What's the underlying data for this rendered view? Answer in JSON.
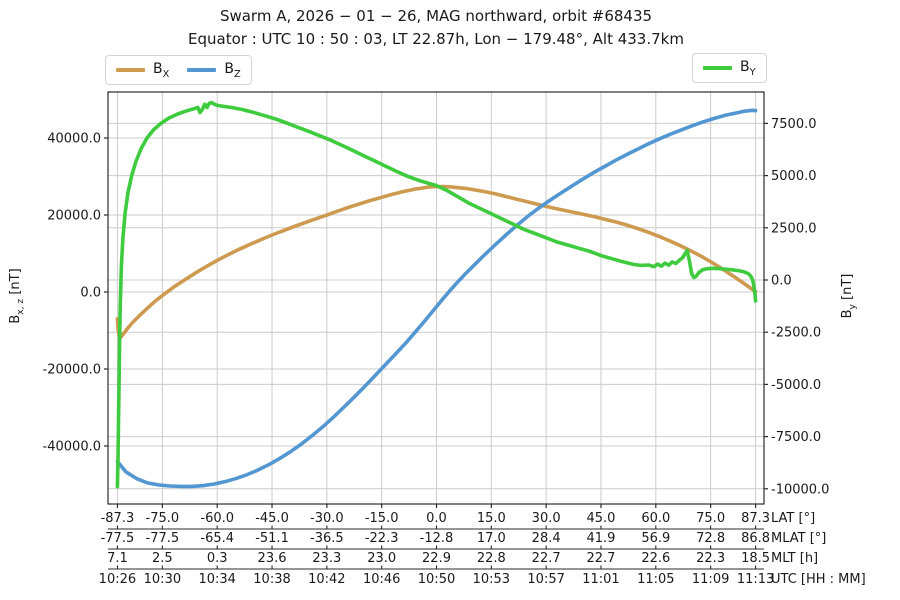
{
  "header": {
    "title_line1": "Swarm A,  2026 − 01 − 26,  MAG northward,  orbit #68435",
    "title_line2": "Equator :  UTC 10 : 50 : 03,  LT 22.87h,  Lon − 179.48°,  Alt 433.7km"
  },
  "legend_left": [
    {
      "base": "B",
      "sub": "X",
      "color": "#cd9a50"
    },
    {
      "base": "B",
      "sub": "Z",
      "color": "#5397d2"
    }
  ],
  "legend_right": [
    {
      "base": "B",
      "sub": "Y",
      "color": "#3ecb3e"
    }
  ],
  "chart_data": {
    "type": "line",
    "title": "Swarm A, 2026-01-26, MAG northward, orbit #68435",
    "subtitle": "Equator: UTC 10:50:03, LT 22.87h, Lon -179.48°, Alt 433.7km",
    "grid": true,
    "y_left": {
      "label_pre": "B",
      "label_sub": "x, z",
      "label_post": " [nT]",
      "ticks": [
        40000,
        20000,
        0,
        -20000,
        -40000
      ],
      "tick_labels": [
        "40000.0",
        "20000.0",
        "0.0",
        "-20000.0",
        "-40000.0"
      ],
      "range": [
        -55000,
        51900
      ]
    },
    "y_right": {
      "label_pre": "B",
      "label_sub": "y",
      "label_post": " [nT]",
      "ticks": [
        7500,
        5000,
        2500,
        0,
        -2500,
        -5000,
        -7500,
        -10000
      ],
      "tick_labels": [
        "7500.0",
        "5000.0",
        "2500.0",
        "0.0",
        "-2500.0",
        "-5000.0",
        "-7500.0",
        "-10000.0"
      ],
      "range": [
        -10730,
        9000
      ]
    },
    "x_axis": {
      "lat_ticks": [
        -87.3,
        -75,
        -60,
        -45,
        -30,
        -15,
        0,
        15,
        30,
        45,
        60,
        75,
        87.3
      ],
      "range": [
        -89.8,
        89.6
      ],
      "rows": [
        {
          "label": "LAT [°]",
          "values": [
            "-87.3",
            "-75.0",
            "-60.0",
            "-45.0",
            "-30.0",
            "-15.0",
            "0.0",
            "15.0",
            "30.0",
            "45.0",
            "60.0",
            "75.0",
            "87.3"
          ]
        },
        {
          "label": "MLAT [°]",
          "values": [
            "-77.5",
            "-77.5",
            "-65.4",
            "-51.1",
            "-36.5",
            "-22.3",
            "-12.8",
            "17.0",
            "28.4",
            "41.9",
            "56.9",
            "72.8",
            "86.8"
          ]
        },
        {
          "label": "MLT [h]",
          "values": [
            "7.1",
            "2.5",
            "0.3",
            "23.6",
            "23.3",
            "23.0",
            "22.9",
            "22.8",
            "22.7",
            "22.7",
            "22.6",
            "22.3",
            "18.5"
          ]
        },
        {
          "label": "UTC [HH : MM]",
          "values": [
            "10:26",
            "10:30",
            "10:34",
            "10:38",
            "10:42",
            "10:46",
            "10:50",
            "10:53",
            "10:57",
            "11:01",
            "11:05",
            "11:09",
            "11:13"
          ]
        }
      ]
    },
    "series": [
      {
        "name": "B_X",
        "axis": "left",
        "color": "#cd9a50",
        "points": [
          [
            -87.3,
            -7000
          ],
          [
            -87.1,
            -9600
          ],
          [
            -86.8,
            -11500
          ],
          [
            -86.5,
            -11900
          ],
          [
            -86.1,
            -11400
          ],
          [
            -85.5,
            -10700
          ],
          [
            -84.5,
            -9400
          ],
          [
            -83,
            -7800
          ],
          [
            -81,
            -5900
          ],
          [
            -79,
            -4100
          ],
          [
            -77,
            -2400
          ],
          [
            -75,
            -900
          ],
          [
            -72,
            1200
          ],
          [
            -69,
            3100
          ],
          [
            -66,
            4900
          ],
          [
            -63,
            6600
          ],
          [
            -60,
            8200
          ],
          [
            -57,
            9700
          ],
          [
            -54,
            11100
          ],
          [
            -51,
            12400
          ],
          [
            -48,
            13600
          ],
          [
            -45,
            14800
          ],
          [
            -42,
            15900
          ],
          [
            -39,
            17000
          ],
          [
            -36,
            18000
          ],
          [
            -33,
            19000
          ],
          [
            -30,
            20000
          ],
          [
            -27,
            21000
          ],
          [
            -24,
            22000
          ],
          [
            -21,
            22900
          ],
          [
            -18,
            23800
          ],
          [
            -15,
            24600
          ],
          [
            -12,
            25400
          ],
          [
            -9,
            26100
          ],
          [
            -6,
            26700
          ],
          [
            -4,
            27000
          ],
          [
            -2,
            27300
          ],
          [
            0,
            27400
          ],
          [
            2,
            27400
          ],
          [
            4,
            27300
          ],
          [
            6,
            27100
          ],
          [
            8,
            26900
          ],
          [
            10,
            26600
          ],
          [
            13,
            26100
          ],
          [
            16,
            25500
          ],
          [
            19,
            24800
          ],
          [
            22,
            24100
          ],
          [
            25,
            23400
          ],
          [
            28,
            22700
          ],
          [
            31,
            22000
          ],
          [
            34,
            21400
          ],
          [
            37,
            20800
          ],
          [
            40,
            20200
          ],
          [
            43,
            19600
          ],
          [
            46,
            18900
          ],
          [
            49,
            18200
          ],
          [
            52,
            17400
          ],
          [
            55,
            16500
          ],
          [
            58,
            15500
          ],
          [
            61,
            14400
          ],
          [
            64,
            13200
          ],
          [
            67,
            11900
          ],
          [
            70,
            10500
          ],
          [
            73,
            9000
          ],
          [
            76,
            7300
          ],
          [
            79,
            5500
          ],
          [
            82,
            3600
          ],
          [
            84,
            2300
          ],
          [
            85.5,
            1300
          ],
          [
            86.5,
            600
          ],
          [
            87.3,
            150
          ]
        ]
      },
      {
        "name": "B_Z",
        "axis": "left",
        "color": "#5397d2",
        "points": [
          [
            -87.3,
            -44000
          ],
          [
            -85,
            -46700
          ],
          [
            -82,
            -48500
          ],
          [
            -79,
            -49600
          ],
          [
            -76,
            -50100
          ],
          [
            -73,
            -50400
          ],
          [
            -70,
            -50500
          ],
          [
            -67,
            -50500
          ],
          [
            -64,
            -50300
          ],
          [
            -61,
            -49900
          ],
          [
            -58,
            -49300
          ],
          [
            -55,
            -48500
          ],
          [
            -52,
            -47500
          ],
          [
            -49,
            -46300
          ],
          [
            -46,
            -44900
          ],
          [
            -43,
            -43300
          ],
          [
            -40,
            -41500
          ],
          [
            -37,
            -39500
          ],
          [
            -34,
            -37300
          ],
          [
            -31,
            -34900
          ],
          [
            -28,
            -32300
          ],
          [
            -25,
            -29600
          ],
          [
            -22,
            -26800
          ],
          [
            -19,
            -23900
          ],
          [
            -16,
            -20900
          ],
          [
            -13,
            -17900
          ],
          [
            -10,
            -14900
          ],
          [
            -8,
            -12800
          ],
          [
            -6,
            -10600
          ],
          [
            -4,
            -8400
          ],
          [
            -2,
            -6100
          ],
          [
            0,
            -3800
          ],
          [
            2,
            -1500
          ],
          [
            4,
            700
          ],
          [
            6,
            2800
          ],
          [
            8,
            4800
          ],
          [
            10,
            6700
          ],
          [
            13,
            9500
          ],
          [
            16,
            12200
          ],
          [
            19,
            14800
          ],
          [
            22,
            17300
          ],
          [
            25,
            19700
          ],
          [
            28,
            21800
          ],
          [
            31,
            23800
          ],
          [
            34,
            25700
          ],
          [
            37,
            27500
          ],
          [
            40,
            29300
          ],
          [
            43,
            31000
          ],
          [
            46,
            32600
          ],
          [
            49,
            34200
          ],
          [
            52,
            35700
          ],
          [
            55,
            37100
          ],
          [
            58,
            38500
          ],
          [
            61,
            39800
          ],
          [
            64,
            41000
          ],
          [
            67,
            42100
          ],
          [
            70,
            43200
          ],
          [
            73,
            44200
          ],
          [
            76,
            45100
          ],
          [
            79,
            45900
          ],
          [
            82,
            46500
          ],
          [
            84,
            46900
          ],
          [
            85.5,
            47100
          ],
          [
            86.5,
            47200
          ],
          [
            87.3,
            47100
          ]
        ]
      },
      {
        "name": "B_Y",
        "axis": "right",
        "color": "#3ecb3e",
        "points": [
          [
            -87.3,
            -9900
          ],
          [
            -87.15,
            -8600
          ],
          [
            -87,
            -6800
          ],
          [
            -86.85,
            -4800
          ],
          [
            -86.7,
            -2900
          ],
          [
            -86.5,
            -1100
          ],
          [
            -86.2,
            700
          ],
          [
            -85.8,
            2000
          ],
          [
            -85.2,
            3200
          ],
          [
            -84.4,
            4200
          ],
          [
            -83.4,
            5000
          ],
          [
            -82.2,
            5700
          ],
          [
            -80.8,
            6300
          ],
          [
            -79.2,
            6800
          ],
          [
            -77.4,
            7200
          ],
          [
            -75.4,
            7500
          ],
          [
            -73.2,
            7760
          ],
          [
            -70.8,
            7950
          ],
          [
            -68.2,
            8110
          ],
          [
            -66.4,
            8200
          ],
          [
            -65.3,
            8260
          ],
          [
            -64.7,
            8020
          ],
          [
            -64.1,
            8160
          ],
          [
            -63.4,
            8420
          ],
          [
            -62.8,
            8260
          ],
          [
            -62.2,
            8460
          ],
          [
            -61.5,
            8500
          ],
          [
            -60.8,
            8420
          ],
          [
            -60,
            8360
          ],
          [
            -58,
            8310
          ],
          [
            -56,
            8260
          ],
          [
            -53,
            8160
          ],
          [
            -50,
            8020
          ],
          [
            -47,
            7870
          ],
          [
            -44,
            7710
          ],
          [
            -41,
            7520
          ],
          [
            -38,
            7320
          ],
          [
            -35,
            7120
          ],
          [
            -32,
            6910
          ],
          [
            -29,
            6700
          ],
          [
            -26,
            6460
          ],
          [
            -23,
            6210
          ],
          [
            -20,
            5960
          ],
          [
            -17,
            5710
          ],
          [
            -14,
            5460
          ],
          [
            -11,
            5210
          ],
          [
            -8,
            4970
          ],
          [
            -5,
            4780
          ],
          [
            -2,
            4620
          ],
          [
            0,
            4520
          ],
          [
            3,
            4270
          ],
          [
            6,
            3970
          ],
          [
            9,
            3670
          ],
          [
            12,
            3420
          ],
          [
            15,
            3170
          ],
          [
            18,
            2920
          ],
          [
            21,
            2670
          ],
          [
            24,
            2420
          ],
          [
            27,
            2220
          ],
          [
            30,
            2020
          ],
          [
            33,
            1820
          ],
          [
            36,
            1670
          ],
          [
            39,
            1520
          ],
          [
            42,
            1370
          ],
          [
            45,
            1170
          ],
          [
            48,
            1020
          ],
          [
            51,
            870
          ],
          [
            54,
            740
          ],
          [
            56,
            700
          ],
          [
            58,
            720
          ],
          [
            59.5,
            640
          ],
          [
            60.5,
            760
          ],
          [
            61.5,
            660
          ],
          [
            62.5,
            810
          ],
          [
            63.5,
            710
          ],
          [
            64.5,
            860
          ],
          [
            65.5,
            790
          ],
          [
            66.5,
            960
          ],
          [
            67.3,
            1060
          ],
          [
            68,
            1260
          ],
          [
            68.6,
            1420
          ],
          [
            69.2,
            920
          ],
          [
            69.8,
            320
          ],
          [
            70.4,
            120
          ],
          [
            71,
            170
          ],
          [
            71.8,
            360
          ],
          [
            72.8,
            490
          ],
          [
            74,
            540
          ],
          [
            75.5,
            560
          ],
          [
            77,
            545
          ],
          [
            78.5,
            525
          ],
          [
            80,
            505
          ],
          [
            81.5,
            475
          ],
          [
            83,
            435
          ],
          [
            84.3,
            385
          ],
          [
            85.3,
            305
          ],
          [
            86,
            185
          ],
          [
            86.5,
            0
          ],
          [
            86.9,
            -350
          ],
          [
            87.15,
            -700
          ],
          [
            87.3,
            -1000
          ]
        ]
      }
    ]
  }
}
